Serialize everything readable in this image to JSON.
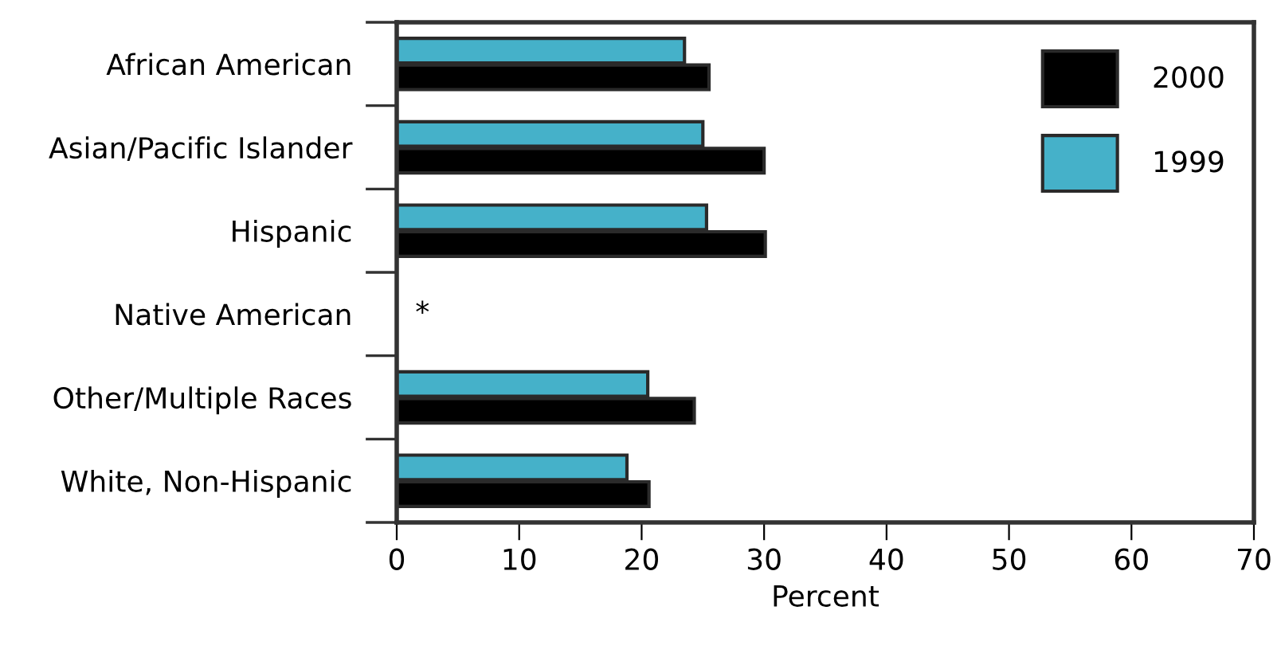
{
  "chart_data": {
    "type": "bar",
    "orientation": "horizontal",
    "xlabel": "Percent",
    "categories": [
      "African American",
      "Asian/Pacific Islander",
      "Hispanic",
      "Native American",
      "Other/Multiple Races",
      "White, Non-Hispanic"
    ],
    "series": [
      {
        "name": "2000",
        "color": "#000000",
        "values": [
          25.5,
          30.0,
          30.1,
          null,
          24.3,
          20.6
        ]
      },
      {
        "name": "1999",
        "color": "#45b1c9",
        "values": [
          23.5,
          25.0,
          25.3,
          null,
          20.5,
          18.8
        ]
      }
    ],
    "xlim": [
      0,
      70
    ],
    "xticks": [
      0,
      10,
      20,
      30,
      40,
      50,
      60,
      70
    ],
    "annotations": [
      "*"
    ],
    "grid": false,
    "legend": "top right"
  }
}
